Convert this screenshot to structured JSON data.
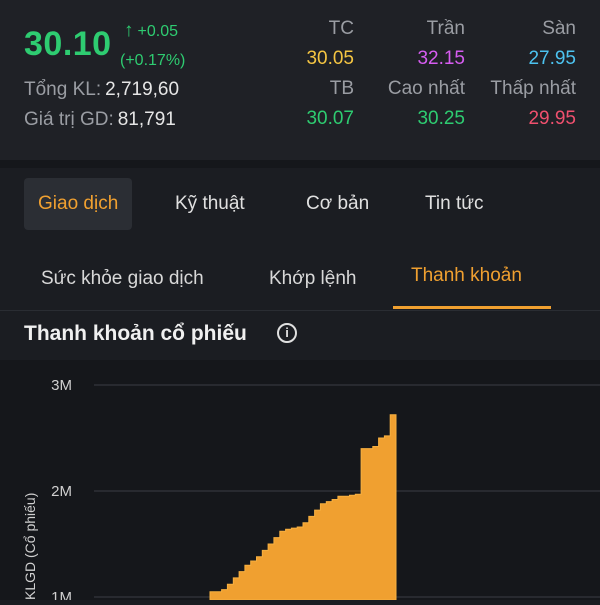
{
  "quote": {
    "price": "30.10",
    "change": "+0.05",
    "change_pct": "(+0.17%)",
    "total_volume_label": "Tổng KL:",
    "total_volume": "2,719,60",
    "trade_value_label": "Giá trị GD:",
    "trade_value": "81,791",
    "tc_label": "TC",
    "tc": "30.05",
    "tran_label": "Trần",
    "tran": "32.15",
    "san_label": "Sàn",
    "san": "27.95",
    "tb_label": "TB",
    "tb": "30.07",
    "cao_label": "Cao nhất",
    "cao": "30.25",
    "thap_label": "Thấp nhất",
    "thap": "29.95",
    "colors": {
      "up": "#2ecc71",
      "ref": "#f5c542",
      "ceiling": "#d65cf0",
      "floor": "#4cc3f0",
      "down": "#f0506e",
      "accent": "#f0a030"
    }
  },
  "main_tabs": [
    "Giao dịch",
    "Kỹ thuật",
    "Cơ bản",
    "Tin tức"
  ],
  "sub_tabs": [
    "Sức khỏe giao dịch",
    "Khớp lệnh",
    "Thanh khoản"
  ],
  "section": {
    "title": "Thanh khoản cổ phiếu",
    "info_icon": "info-icon"
  },
  "chart_data": {
    "type": "area",
    "ylabel": "KLGD (Cổ phiếu)",
    "y_ticks": [
      "3M",
      "2M",
      "1M"
    ],
    "ylim": [
      1000000,
      3000000
    ],
    "grid": true,
    "color": "#f0a030",
    "values": [
      1050000,
      1050000,
      1070000,
      1120000,
      1180000,
      1240000,
      1300000,
      1340000,
      1380000,
      1440000,
      1500000,
      1560000,
      1620000,
      1640000,
      1650000,
      1660000,
      1700000,
      1760000,
      1820000,
      1880000,
      1900000,
      1920000,
      1950000,
      1950000,
      1960000,
      1970000,
      2400000,
      2400000,
      2420000,
      2500000,
      2520000,
      2720000
    ]
  }
}
